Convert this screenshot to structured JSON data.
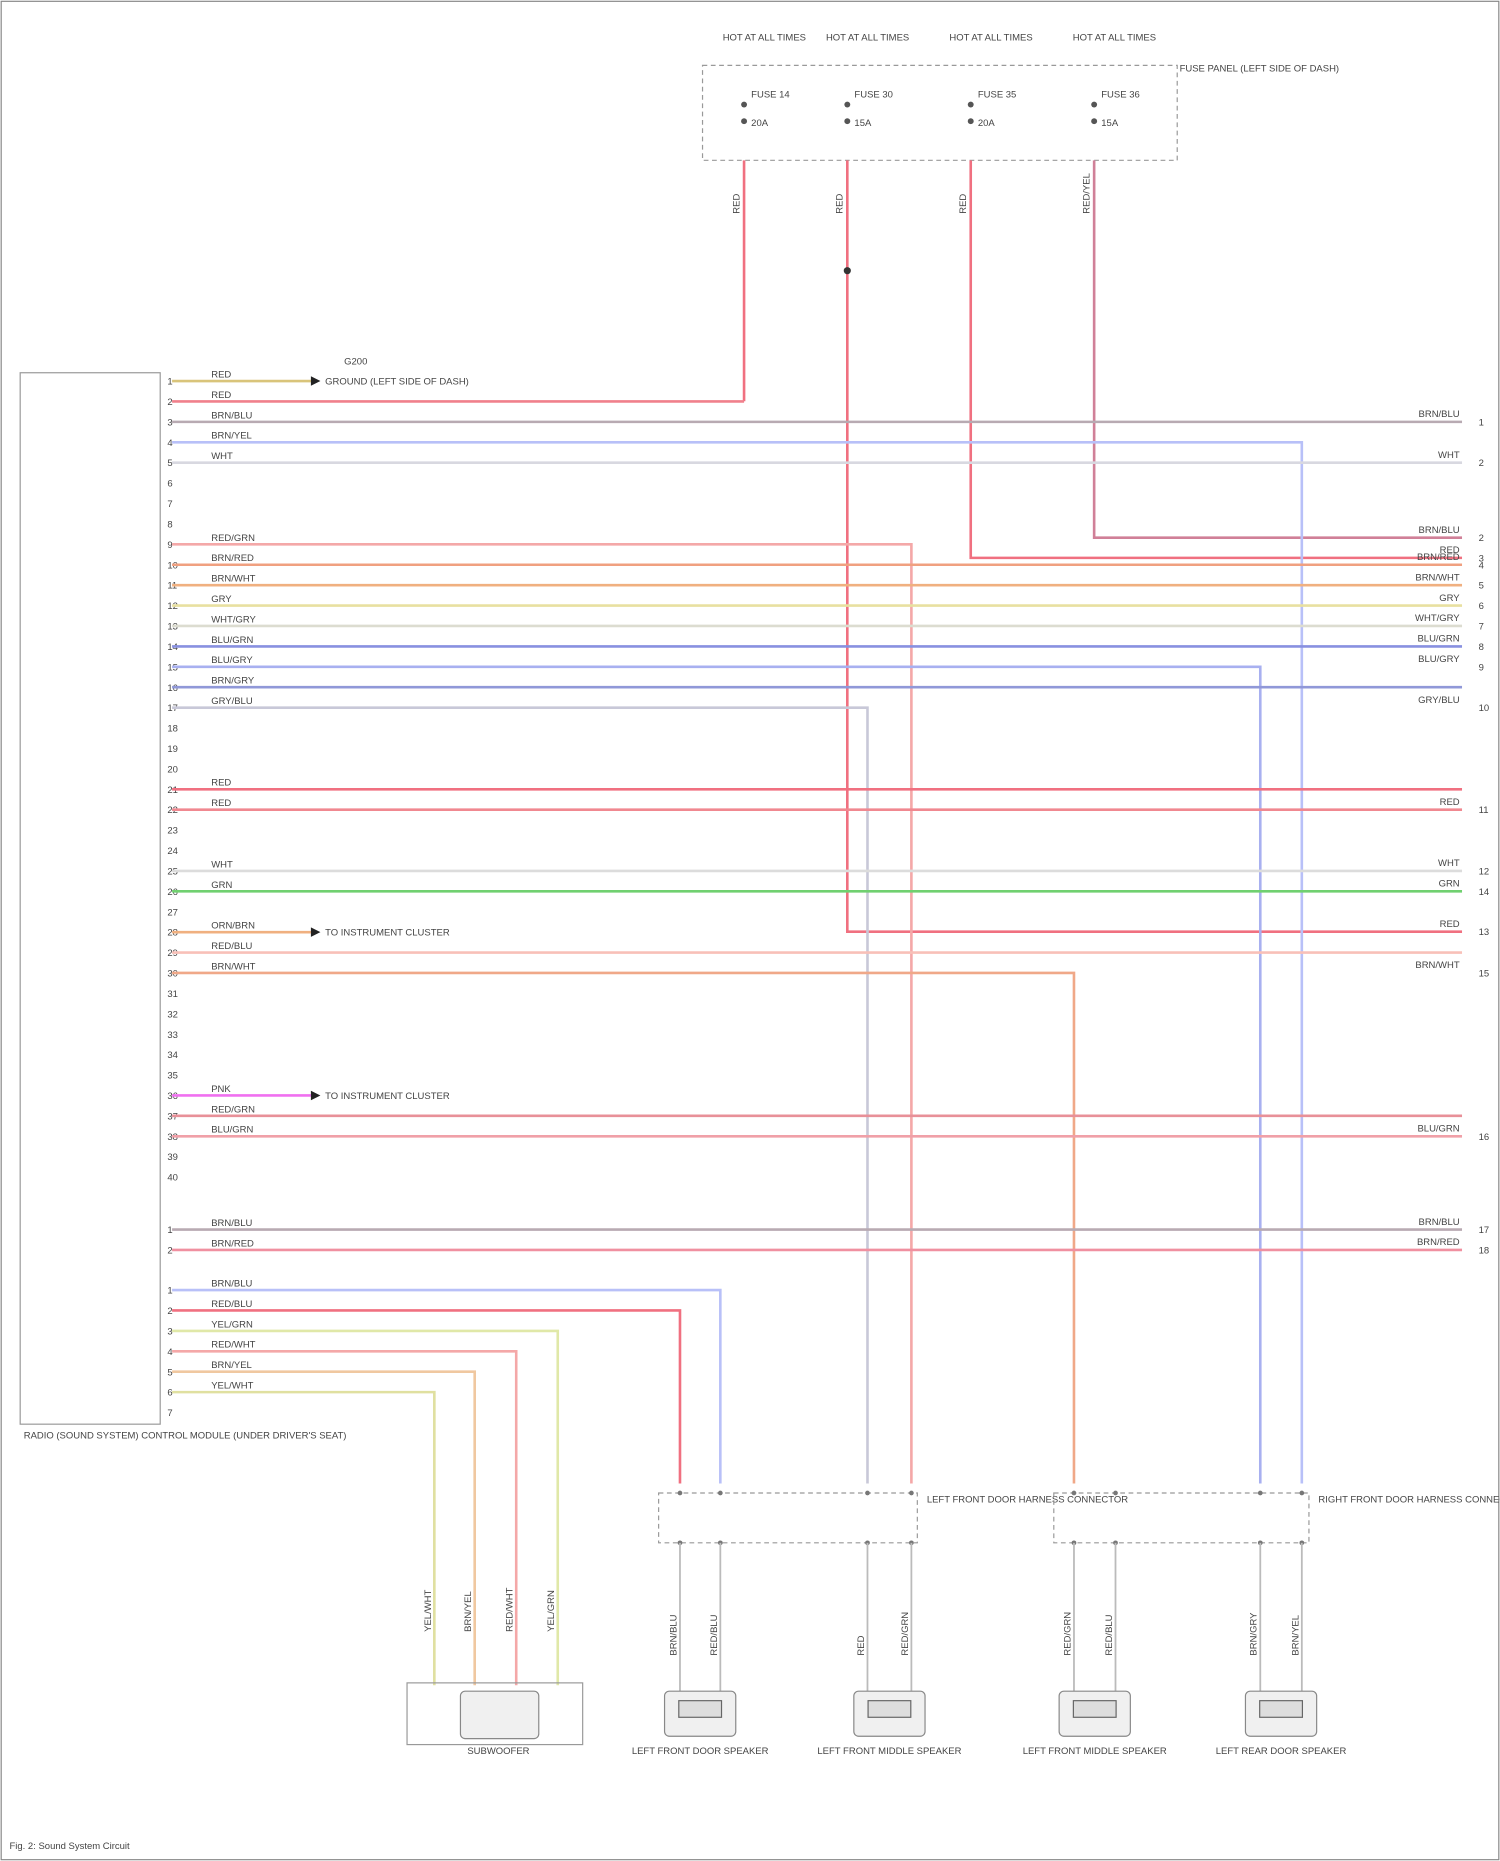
{
  "fuse_panel": {
    "label": "FUSE PANEL (LEFT SIDE OF DASH)",
    "fuses": [
      {
        "hot": "HOT AT ALL TIMES",
        "fuse": "FUSE 14",
        "amp": "20A",
        "wire": "RED"
      },
      {
        "hot": "HOT AT ALL TIMES",
        "fuse": "FUSE 30",
        "amp": "15A",
        "wire": "RED",
        "end": "RED",
        "term": "13"
      },
      {
        "hot": "HOT AT ALL TIMES",
        "fuse": "FUSE 35",
        "amp": "20A",
        "wire": "RED",
        "end": "RED",
        "term": "3"
      },
      {
        "hot": "HOT AT ALL TIMES",
        "fuse": "FUSE 36",
        "amp": "15A",
        "wire": "RED/YEL",
        "end": "BRN/BLU",
        "term": "2"
      }
    ]
  },
  "module": {
    "label": "RADIO (SOUND SYSTEM) CONTROL MODULE (UNDER DRIVER'S SEAT)",
    "connectors": [
      {
        "pins": [
          "1",
          "2",
          "3",
          "4",
          "5",
          "6",
          "7",
          "8",
          "9",
          "10",
          "11",
          "12",
          "13",
          "14",
          "15",
          "16",
          "17",
          "18",
          "19",
          "20",
          "21",
          "22",
          "23",
          "24",
          "25",
          "26",
          "27",
          "28",
          "29",
          "30",
          "31",
          "32",
          "33",
          "34",
          "35",
          "36",
          "37",
          "38",
          "39",
          "40"
        ],
        "wires": [
          {
            "pin": "1",
            "label": "RED",
            "color": "#d9c47a",
            "arrow": "GROUND (LEFT SIDE OF DASH)",
            "ground": "G200"
          },
          {
            "pin": "2",
            "label": "RED",
            "color": "#f0808c"
          },
          {
            "pin": "3",
            "label": "BRN/BLU",
            "color": "#b8aab2",
            "end": "BRN/BLU",
            "term": "1"
          },
          {
            "pin": "4",
            "label": "BRN/YEL",
            "color": "#b8c0f8"
          },
          {
            "pin": "5",
            "label": "WHT",
            "color": "#d8d8e0",
            "end": "WHT",
            "term": "2"
          },
          {
            "pin": "9",
            "label": "RED/GRN",
            "color": "#f4a8a8"
          },
          {
            "pin": "10",
            "label": "BRN/RED",
            "color": "#f0a080",
            "end": "BRN/RED",
            "term": "4"
          },
          {
            "pin": "11",
            "label": "BRN/WHT",
            "color": "#f0b080",
            "end": "BRN/WHT",
            "term": "5"
          },
          {
            "pin": "12",
            "label": "GRY",
            "color": "#e8e0a0",
            "end": "GRY",
            "term": "6"
          },
          {
            "pin": "13",
            "label": "WHT/GRY",
            "color": "#dcdcd0",
            "end": "WHT/GRY",
            "term": "7"
          },
          {
            "pin": "14",
            "label": "BLU/GRN",
            "color": "#8890e0",
            "end": "BLU/GRN",
            "term": "8"
          },
          {
            "pin": "15",
            "label": "BLU/GRY",
            "color": "#a8b0f0",
            "end": "BLU/GRY",
            "term": "9"
          },
          {
            "pin": "16",
            "label": "BRN/GRY",
            "color": "#9098d8"
          },
          {
            "pin": "17",
            "label": "GRY/BLU",
            "color": "#c8c8d8",
            "end": "GRY/BLU",
            "term": "10"
          },
          {
            "pin": "21",
            "label": "RED",
            "color": "#f07080"
          },
          {
            "pin": "22",
            "label": "RED",
            "color": "#f08890",
            "end": "RED",
            "term": "11"
          },
          {
            "pin": "25",
            "label": "WHT",
            "color": "#dcdcdc",
            "end": "WHT",
            "term": "12"
          },
          {
            "pin": "26",
            "label": "GRN",
            "color": "#70d070",
            "end": "GRN",
            "term": "14"
          },
          {
            "pin": "28",
            "label": "ORN/BRN",
            "color": "#f0b080",
            "arrow": "TO INSTRUMENT CLUSTER"
          },
          {
            "pin": "29",
            "label": "RED/BLU",
            "color": "#f8c0b8"
          },
          {
            "pin": "30",
            "label": "BRN/WHT",
            "color": "#f0a888",
            "end": "BRN/WHT",
            "term": "15"
          },
          {
            "pin": "36",
            "label": "PNK",
            "color": "#f070f0",
            "arrow": "TO INSTRUMENT CLUSTER"
          },
          {
            "pin": "37",
            "label": "RED/GRN",
            "color": "#e89098"
          },
          {
            "pin": "38",
            "label": "BLU/GRN",
            "color": "#f0a0a8",
            "end": "BLU/GRN",
            "term": "16"
          }
        ]
      },
      {
        "pins": [
          "1",
          "2"
        ],
        "wires": [
          {
            "pin": "1",
            "label": "BRN/BLU",
            "color": "#b8aab2",
            "end": "BRN/BLU",
            "term": "17"
          },
          {
            "pin": "2",
            "label": "BRN/RED",
            "color": "#f090a0",
            "end": "BRN/RED",
            "term": "18"
          }
        ]
      },
      {
        "pins": [
          "1",
          "2",
          "3",
          "4",
          "5",
          "6",
          "7"
        ],
        "wires": [
          {
            "pin": "1",
            "label": "BRN/BLU",
            "color": "#b8c0f8"
          },
          {
            "pin": "2",
            "label": "RED/BLU",
            "color": "#f07080"
          },
          {
            "pin": "3",
            "label": "YEL/GRN",
            "color": "#e0e8a8"
          },
          {
            "pin": "4",
            "label": "RED/WHT",
            "color": "#f4a8a8"
          },
          {
            "pin": "5",
            "label": "BRN/YEL",
            "color": "#f0c8a0"
          },
          {
            "pin": "6",
            "label": "YEL/WHT",
            "color": "#e0e0a0"
          }
        ]
      }
    ]
  },
  "connectors": [
    {
      "label": "LEFT FRONT DOOR HARNESS CONNECTOR"
    },
    {
      "label": "RIGHT FRONT DOOR HARNESS CONNECTOR"
    }
  ],
  "speakers": [
    {
      "label": "LEFT FRONT DOOR SPEAKER",
      "wires": [
        "BRN/BLU",
        "RED/BLU"
      ]
    },
    {
      "label": "LEFT FRONT MIDDLE SPEAKER",
      "wires": [
        "RED",
        "RED/GRN"
      ]
    },
    {
      "label": "LEFT FRONT MIDDLE SPEAKER",
      "wires": [
        "RED/GRN",
        "RED/BLU"
      ]
    },
    {
      "label": "LEFT REAR DOOR SPEAKER",
      "wires": [
        "BRN/GRY",
        "BRN/YEL"
      ]
    }
  ],
  "subwoofer": {
    "label": "SUBWOOFER",
    "wires": [
      "YEL/WHT",
      "BRN/YEL",
      "RED/WHT",
      "YEL/GRN"
    ]
  },
  "footer": "Fig. 2: Sound System Circuit"
}
